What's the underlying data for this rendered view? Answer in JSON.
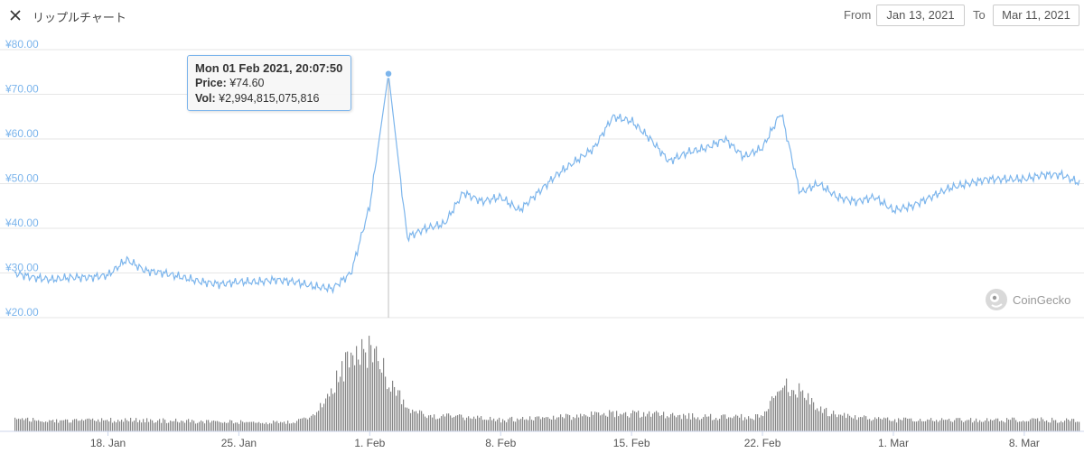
{
  "header": {
    "title": "リップルチャート",
    "from_label": "From",
    "from_date": "Jan 13, 2021",
    "to_label": "To",
    "to_date": "Mar 11, 2021"
  },
  "tooltip": {
    "date": "Mon 01 Feb 2021, 20:07:50",
    "price_label": "Price:",
    "price_value": "¥74.60",
    "vol_label": "Vol:",
    "vol_value": "¥2,994,815,075,816"
  },
  "watermark": "CoinGecko",
  "colors": {
    "line": "#7cb5ec",
    "volume": "#888888",
    "grid": "#e6e6e6",
    "crosshair": "#bfbfbf"
  },
  "chart_data": {
    "type": "line",
    "title": "リップルチャート",
    "y_ticks": [
      "¥20.00",
      "¥30.00",
      "¥40.00",
      "¥50.00",
      "¥60.00",
      "¥70.00",
      "¥80.00"
    ],
    "ylim": [
      20,
      80
    ],
    "x_ticks": [
      "18. Jan",
      "25. Jan",
      "1. Feb",
      "8. Feb",
      "15. Feb",
      "22. Feb",
      "1. Mar",
      "8. Mar"
    ],
    "x_tick_dates": [
      "2021-01-18",
      "2021-01-25",
      "2021-02-01",
      "2021-02-08",
      "2021-02-15",
      "2021-02-22",
      "2021-03-01",
      "2021-03-08"
    ],
    "xlim": [
      "2021-01-13",
      "2021-03-11"
    ],
    "series": [
      {
        "type": "line",
        "x": [
          "2021-01-13",
          "2021-01-14",
          "2021-01-15",
          "2021-01-16",
          "2021-01-17",
          "2021-01-18",
          "2021-01-19",
          "2021-01-20",
          "2021-01-21",
          "2021-01-22",
          "2021-01-23",
          "2021-01-24",
          "2021-01-25",
          "2021-01-26",
          "2021-01-27",
          "2021-01-28",
          "2021-01-29",
          "2021-01-30",
          "2021-01-31",
          "2021-02-01",
          "2021-02-02",
          "2021-02-03",
          "2021-02-04",
          "2021-02-05",
          "2021-02-06",
          "2021-02-07",
          "2021-02-08",
          "2021-02-09",
          "2021-02-10",
          "2021-02-11",
          "2021-02-12",
          "2021-02-13",
          "2021-02-14",
          "2021-02-15",
          "2021-02-16",
          "2021-02-17",
          "2021-02-18",
          "2021-02-19",
          "2021-02-20",
          "2021-02-21",
          "2021-02-22",
          "2021-02-23",
          "2021-02-24",
          "2021-02-25",
          "2021-02-26",
          "2021-02-27",
          "2021-02-28",
          "2021-03-01",
          "2021-03-02",
          "2021-03-03",
          "2021-03-04",
          "2021-03-05",
          "2021-03-06",
          "2021-03-07",
          "2021-03-08",
          "2021-03-09",
          "2021-03-10",
          "2021-03-11"
        ],
        "values": [
          30,
          29,
          28.5,
          29,
          29,
          29.5,
          33,
          30.5,
          30,
          29,
          28,
          27.5,
          28,
          28,
          28.5,
          28,
          27,
          26.5,
          30,
          45,
          74.6,
          38,
          40,
          41,
          48,
          46,
          47,
          44,
          48,
          52,
          55,
          58,
          65,
          64,
          60,
          55,
          57,
          58,
          60,
          56,
          58,
          66,
          48,
          50,
          47,
          46,
          47,
          44,
          45,
          47,
          49,
          50,
          51,
          51,
          51,
          52,
          52,
          50
        ]
      }
    ],
    "volume": {
      "x": [
        "2021-01-13",
        "2021-01-16",
        "2021-01-19",
        "2021-01-22",
        "2021-01-25",
        "2021-01-28",
        "2021-01-29",
        "2021-01-30",
        "2021-01-31",
        "2021-02-01",
        "2021-02-02",
        "2021-02-03",
        "2021-02-04",
        "2021-02-06",
        "2021-02-08",
        "2021-02-11",
        "2021-02-14",
        "2021-02-16",
        "2021-02-18",
        "2021-02-20",
        "2021-02-22",
        "2021-02-23",
        "2021-02-24",
        "2021-02-25",
        "2021-02-27",
        "2021-03-01",
        "2021-03-04",
        "2021-03-07",
        "2021-03-09",
        "2021-03-11"
      ],
      "values": [
        1.0,
        0.9,
        1.0,
        0.9,
        0.8,
        0.8,
        1.5,
        4.0,
        6.5,
        7.2,
        4.5,
        1.8,
        1.4,
        1.2,
        1.0,
        1.2,
        1.6,
        1.5,
        1.3,
        1.2,
        1.3,
        4.0,
        3.5,
        1.8,
        1.2,
        1.0,
        1.0,
        1.0,
        1.0,
        0.9
      ]
    }
  }
}
